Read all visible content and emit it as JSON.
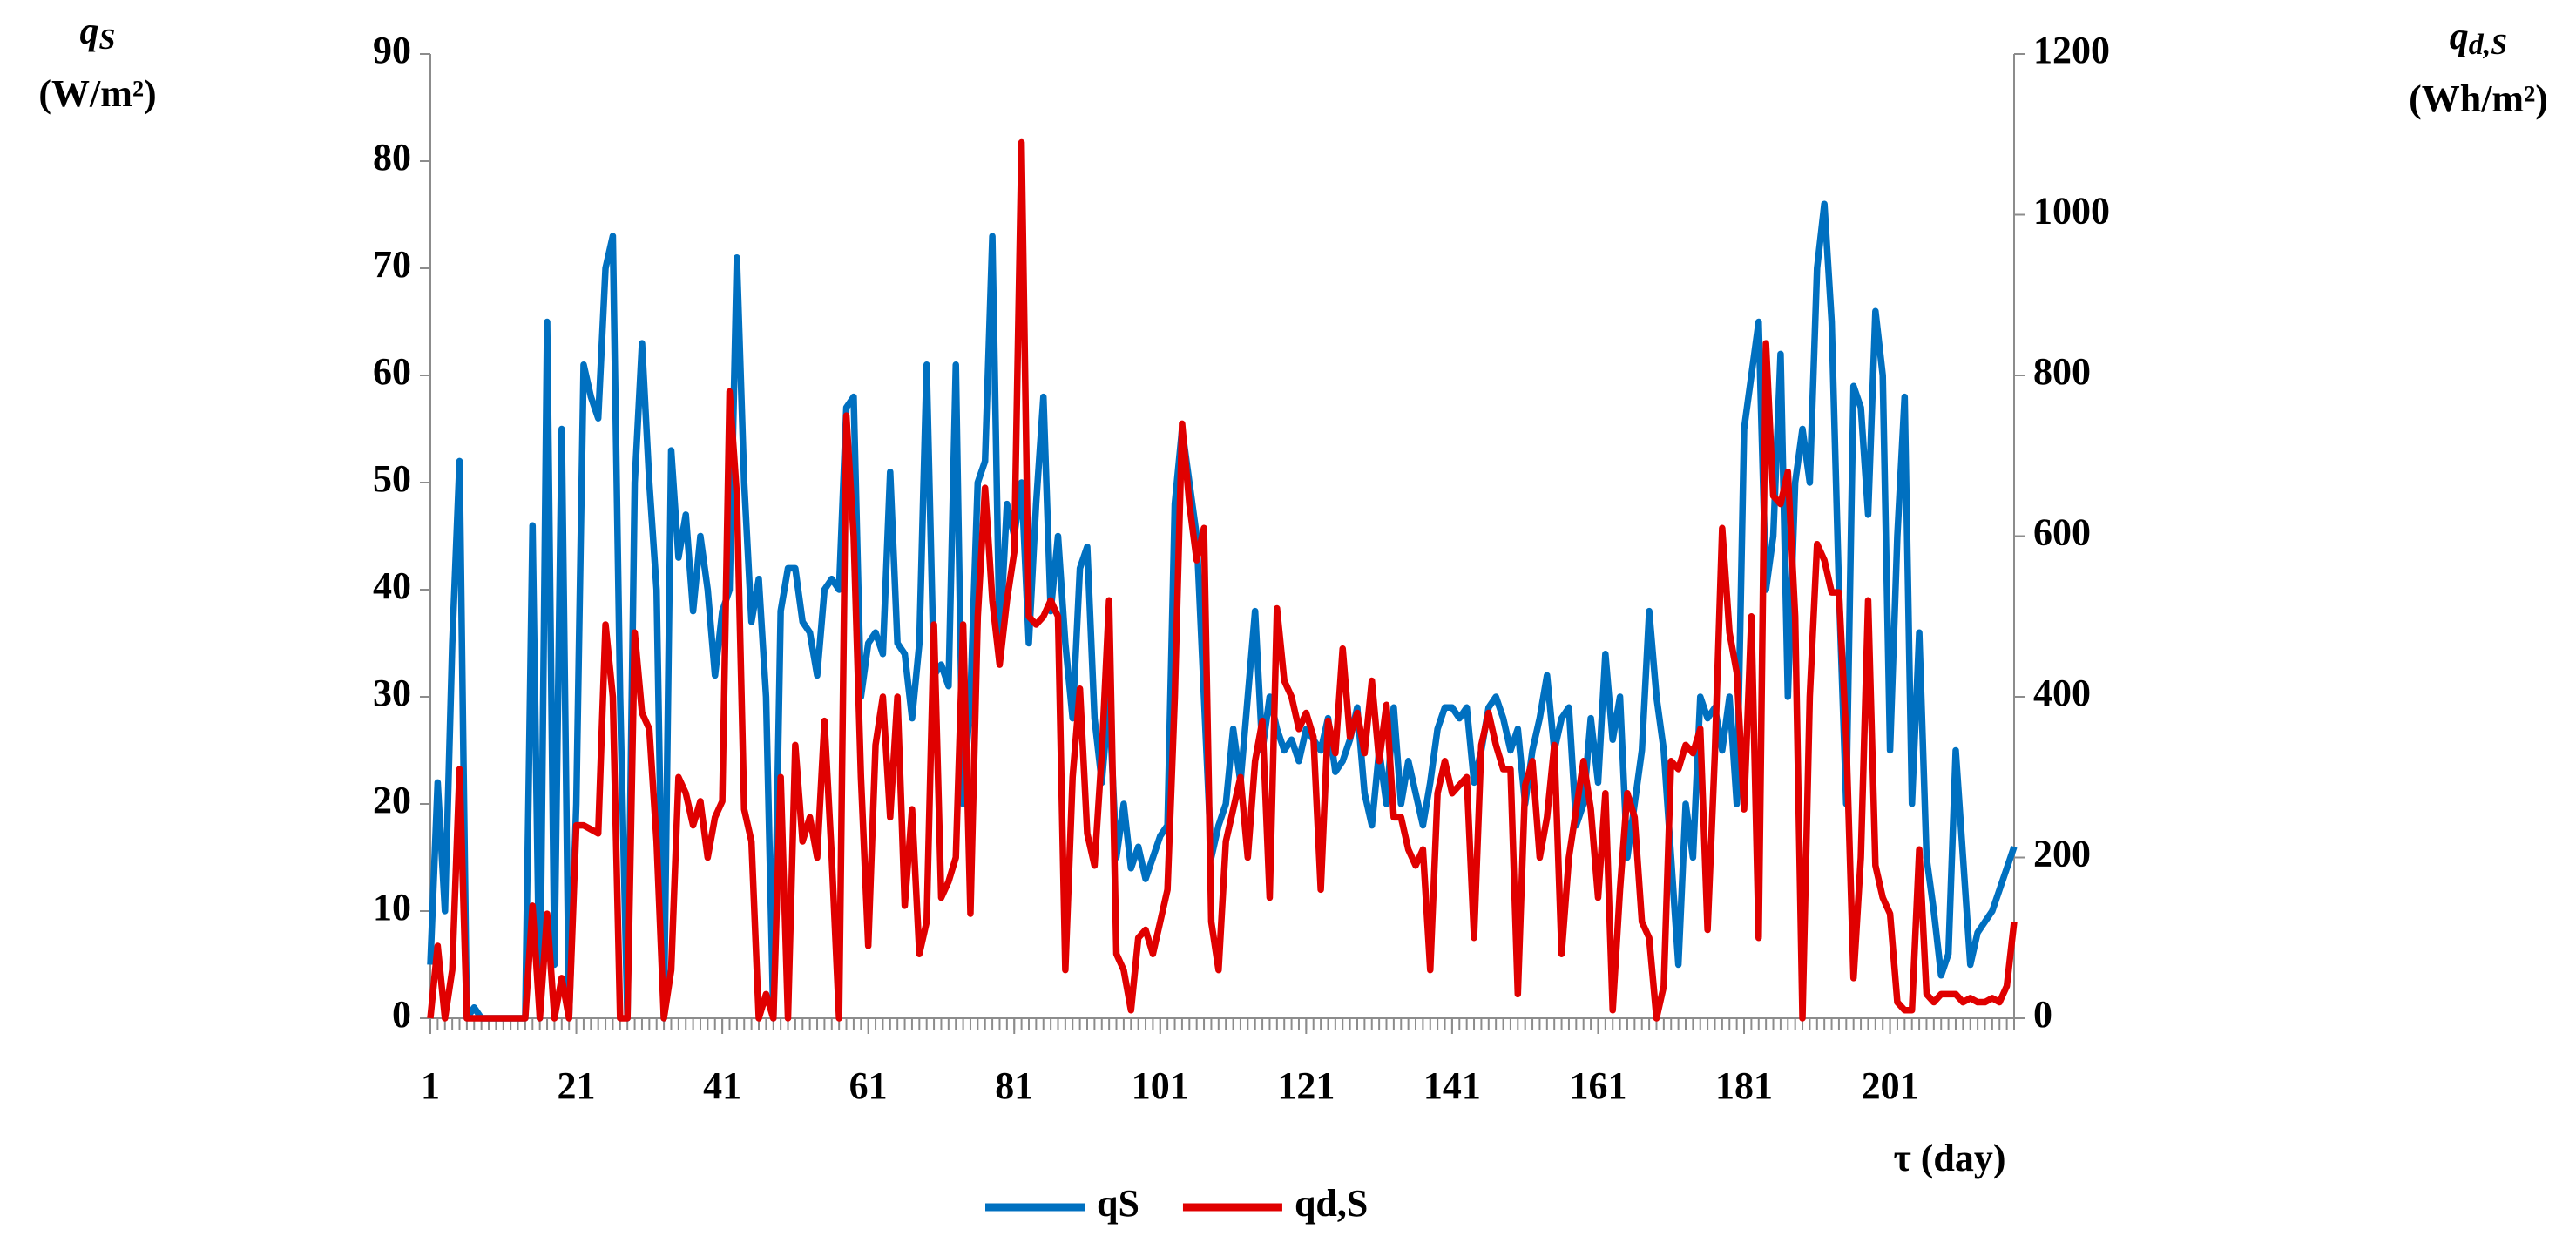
{
  "chart_data": {
    "type": "line",
    "y_label_symbol": "q",
    "y_label_sub": "S",
    "y_label_unit": "(W/m²)",
    "y2_label_symbol": "q",
    "y2_label_sub": "d,S",
    "y2_label_unit": "(Wh/m²)",
    "x_label": "τ (day)",
    "x": [
      1,
      2,
      3,
      4,
      5,
      6,
      7,
      8,
      9,
      10,
      11,
      12,
      13,
      14,
      15,
      16,
      17,
      18,
      19,
      20,
      21,
      22,
      23,
      24,
      25,
      26,
      27,
      28,
      29,
      30,
      31,
      32,
      33,
      34,
      35,
      36,
      37,
      38,
      39,
      40,
      41,
      42,
      43,
      44,
      45,
      46,
      47,
      48,
      49,
      50,
      51,
      52,
      53,
      54,
      55,
      56,
      57,
      58,
      59,
      60,
      61,
      62,
      63,
      64,
      65,
      66,
      67,
      68,
      69,
      70,
      71,
      72,
      73,
      74,
      75,
      76,
      77,
      78,
      79,
      80,
      81,
      82,
      83,
      84,
      85,
      86,
      87,
      88,
      89,
      90,
      91,
      92,
      93,
      94,
      95,
      96,
      97,
      98,
      99,
      100,
      101,
      102,
      103,
      104,
      105,
      106,
      107,
      108,
      109,
      110,
      111,
      112,
      113,
      114,
      115,
      116,
      117,
      118,
      119,
      120,
      121,
      122,
      123,
      124,
      125,
      126,
      127,
      128,
      129,
      130,
      131,
      132,
      133,
      134,
      135,
      136,
      137,
      138,
      139,
      140,
      141,
      142,
      143,
      144,
      145,
      146,
      147,
      148,
      149,
      150,
      151,
      152,
      153,
      154,
      155,
      156,
      157,
      158,
      159,
      160,
      161,
      162,
      163,
      164,
      165,
      166,
      167,
      168,
      169,
      170,
      171,
      172,
      173,
      174,
      175,
      176,
      177,
      178,
      179,
      180,
      181,
      182,
      183,
      184,
      185,
      186,
      187,
      188,
      189,
      190,
      191,
      192,
      193,
      194,
      195,
      196,
      197,
      198,
      199,
      200,
      201,
      202,
      203,
      204,
      205,
      206,
      207,
      208,
      209,
      210,
      211,
      212,
      213,
      214,
      215,
      216,
      217,
      218
    ],
    "xlim": [
      1,
      218
    ],
    "xticks": [
      1,
      21,
      41,
      61,
      81,
      101,
      121,
      141,
      161,
      181,
      201
    ],
    "ylim": [
      0,
      90
    ],
    "yticks": [
      0,
      10,
      20,
      30,
      40,
      50,
      60,
      70,
      80,
      90
    ],
    "y2lim": [
      0,
      1200
    ],
    "y2ticks": [
      0,
      200,
      400,
      600,
      800,
      1000,
      1200
    ],
    "series": [
      {
        "name": "qS",
        "color": "#0070c0",
        "values": [
          5,
          22,
          10,
          35,
          52,
          0,
          1,
          0,
          0,
          0,
          0,
          0,
          0,
          0,
          46,
          0,
          65,
          5,
          55,
          0,
          20,
          61,
          58,
          56,
          70,
          73,
          30,
          0,
          50,
          63,
          50,
          40,
          0,
          53,
          43,
          47,
          38,
          45,
          40,
          32,
          38,
          40,
          71,
          50,
          37,
          41,
          30,
          0,
          38,
          42,
          42,
          37,
          36,
          32,
          40,
          41,
          40,
          57,
          58,
          30,
          35,
          36,
          34,
          51,
          35,
          34,
          28,
          35,
          61,
          32,
          33,
          31,
          61,
          20,
          30,
          50,
          52,
          73,
          35,
          48,
          45,
          50,
          35,
          48,
          58,
          38,
          45,
          35,
          28,
          42,
          44,
          28,
          22,
          30,
          15,
          20,
          14,
          16,
          13,
          15,
          17,
          18,
          48,
          55,
          50,
          45,
          30,
          15,
          18,
          20,
          27,
          22,
          30,
          38,
          25,
          30,
          27,
          25,
          26,
          24,
          27,
          26,
          25,
          28,
          23,
          24,
          26,
          29,
          21,
          18,
          25,
          20,
          29,
          20,
          24,
          21,
          18,
          22,
          27,
          29,
          29,
          28,
          29,
          22,
          25,
          29,
          30,
          28,
          25,
          27,
          20,
          25,
          28,
          32,
          25,
          28,
          29,
          18,
          20,
          28,
          22,
          34,
          26,
          30,
          15,
          20,
          25,
          38,
          30,
          25,
          15,
          5,
          20,
          15,
          30,
          28,
          29,
          25,
          30,
          20,
          55,
          60,
          65,
          40,
          45,
          62,
          30,
          50,
          55,
          50,
          70,
          76,
          65,
          40,
          20,
          59,
          57,
          47,
          66,
          60,
          25,
          45,
          58,
          20,
          36,
          15,
          10,
          4,
          6,
          25,
          15,
          5,
          8,
          9,
          10,
          12,
          14,
          16
        ]
      },
      {
        "name": "qd,S",
        "color": "#e00000",
        "axis": "y2",
        "values": [
          0,
          90,
          0,
          60,
          310,
          0,
          0,
          0,
          0,
          0,
          0,
          0,
          0,
          0,
          140,
          0,
          130,
          0,
          50,
          0,
          240,
          240,
          235,
          230,
          490,
          400,
          0,
          0,
          480,
          380,
          360,
          220,
          0,
          60,
          300,
          280,
          240,
          270,
          200,
          250,
          270,
          780,
          650,
          260,
          220,
          0,
          30,
          0,
          300,
          0,
          340,
          220,
          250,
          200,
          370,
          200,
          0,
          750,
          600,
          300,
          90,
          340,
          400,
          250,
          400,
          140,
          260,
          80,
          120,
          490,
          150,
          170,
          200,
          490,
          130,
          500,
          660,
          520,
          440,
          520,
          580,
          1090,
          500,
          490,
          500,
          520,
          500,
          60,
          300,
          410,
          230,
          190,
          330,
          520,
          80,
          60,
          10,
          100,
          110,
          80,
          120,
          160,
          400,
          740,
          640,
          570,
          610,
          120,
          60,
          220,
          260,
          300,
          200,
          320,
          370,
          150,
          510,
          420,
          400,
          360,
          380,
          350,
          160,
          370,
          330,
          460,
          350,
          380,
          330,
          420,
          320,
          390,
          250,
          250,
          210,
          190,
          210,
          60,
          280,
          320,
          280,
          290,
          300,
          100,
          340,
          380,
          340,
          310,
          310,
          30,
          290,
          320,
          200,
          250,
          340,
          80,
          200,
          260,
          320,
          260,
          150,
          280,
          10,
          160,
          280,
          250,
          120,
          100,
          0,
          40,
          320,
          310,
          340,
          330,
          360,
          110,
          330,
          610,
          480,
          430,
          260,
          500,
          100,
          840,
          650,
          640,
          680,
          500,
          0,
          400,
          590,
          570,
          530,
          530,
          350,
          50,
          200,
          520,
          190,
          150,
          130,
          20,
          10,
          10,
          210,
          30,
          20,
          30,
          30,
          30,
          20,
          25,
          20,
          20,
          25,
          20,
          40,
          120
        ]
      }
    ]
  }
}
